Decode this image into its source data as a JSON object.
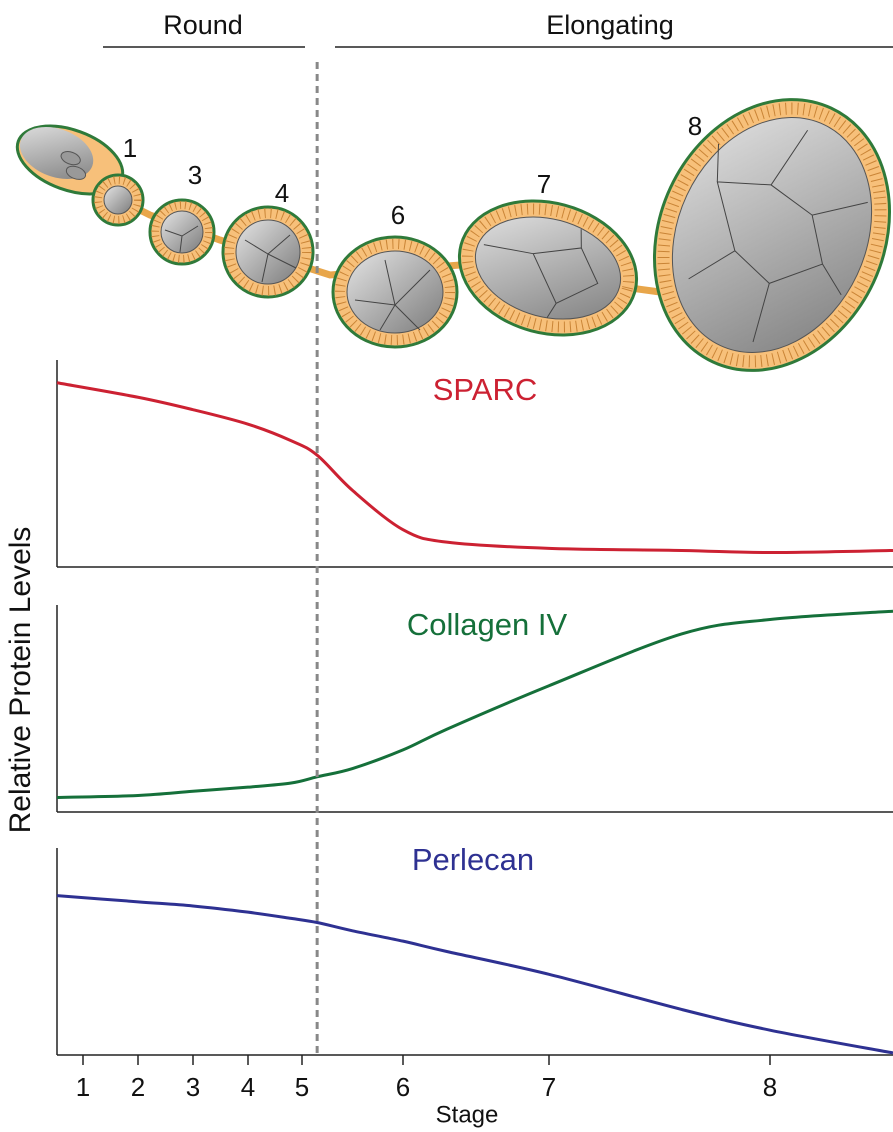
{
  "illustration": {
    "header_left": "Round",
    "header_right": "Elongating",
    "stage_labels": [
      "1",
      "3",
      "4",
      "6",
      "7",
      "8"
    ]
  },
  "stage_boundary": 5.15,
  "chart_data": [
    {
      "type": "line",
      "xlim": [
        0.5,
        8.55
      ],
      "ylim": [
        0,
        1
      ],
      "x": [
        0.5,
        2,
        3,
        4,
        4.8,
        5.15,
        5.5,
        6,
        6.3,
        7,
        7.6,
        8,
        8.55
      ],
      "series": [
        {
          "name": "SPARC",
          "color": "#cc2132",
          "values": [
            0.89,
            0.82,
            0.76,
            0.69,
            0.61,
            0.54,
            0.37,
            0.18,
            0.12,
            0.09,
            0.08,
            0.07,
            0.08
          ]
        }
      ]
    },
    {
      "type": "line",
      "xlim": [
        0.5,
        8.55
      ],
      "ylim": [
        0,
        1
      ],
      "ylabel": "Relative Protein Levels",
      "x": [
        0.5,
        2,
        3,
        4,
        4.8,
        5.15,
        5.5,
        6,
        6.3,
        7,
        7.6,
        8,
        8.55
      ],
      "series": [
        {
          "name": "Collagen IV",
          "color": "#15703a",
          "values": [
            0.07,
            0.08,
            0.1,
            0.12,
            0.14,
            0.17,
            0.21,
            0.3,
            0.4,
            0.61,
            0.86,
            0.93,
            0.97
          ]
        }
      ]
    },
    {
      "type": "line",
      "xlim": [
        0.5,
        8.55
      ],
      "ylim": [
        0,
        1
      ],
      "xlabel": "Stage",
      "xticks": [
        1,
        2,
        3,
        4,
        5,
        6,
        7,
        8
      ],
      "x": [
        0.5,
        2,
        3,
        4,
        4.8,
        5.15,
        5.5,
        6,
        6.3,
        7,
        7.6,
        8,
        8.55
      ],
      "series": [
        {
          "name": "Perlecan",
          "color": "#2e3192",
          "values": [
            0.77,
            0.74,
            0.72,
            0.69,
            0.66,
            0.64,
            0.6,
            0.55,
            0.5,
            0.39,
            0.22,
            0.12,
            0.01
          ]
        }
      ]
    }
  ]
}
